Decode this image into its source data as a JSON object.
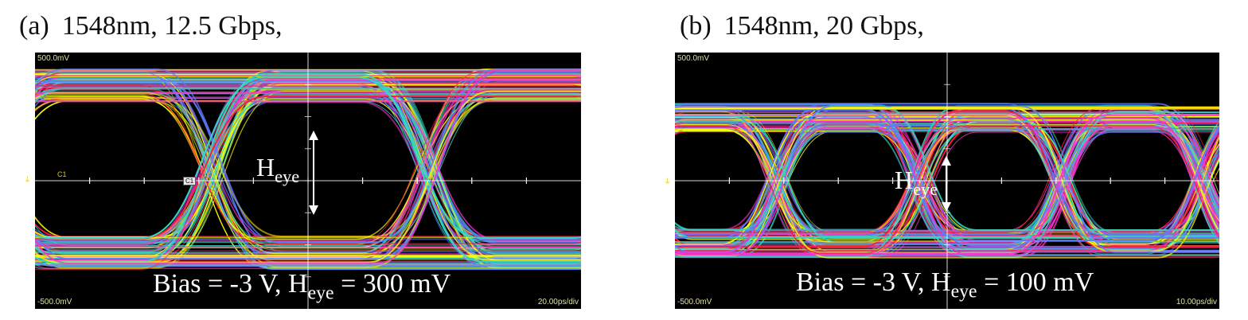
{
  "panel_a": {
    "label": "(a)",
    "caption": "1548nm, 12.5 Gbps,",
    "scale_top": "500.0mV",
    "scale_bottom": "-500.0mV",
    "time_div": "20.00ps/div",
    "channel_label": "C1",
    "channel_box": "C1",
    "heye_main": "H",
    "heye_sub": "eye",
    "bias_prefix": "Bias = -3 V, H",
    "bias_sub": "eye",
    "bias_suffix": " = 300 mV"
  },
  "panel_b": {
    "label": "(b)",
    "caption": "1548nm, 20 Gbps,",
    "scale_top": "500.0mV",
    "scale_bottom": "-500.0mV",
    "time_div": "10.00ps/div",
    "heye_main": "H",
    "heye_sub": "eye",
    "bias_prefix": "Bias = -3 V, H",
    "bias_sub": "eye",
    "bias_suffix": " = 100 mV"
  },
  "colors": {
    "background": "#000000",
    "trace_yellow": "#ffff00",
    "trace_red": "#ff1a3c",
    "trace_magenta": "#ff33cc",
    "trace_cyan": "#33d6c0",
    "trace_blue": "#5a7cff",
    "grid": "#ffffff"
  }
}
